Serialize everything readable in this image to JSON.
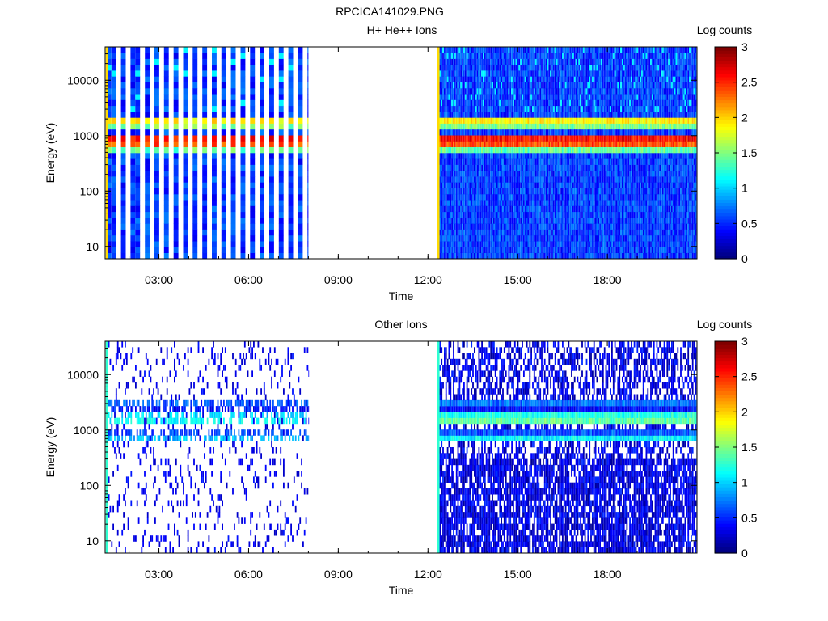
{
  "figure_title": "RPCICA141029.PNG",
  "chart_data": [
    {
      "type": "heatmap",
      "title": "H+ He++ Ions",
      "xlabel": "Time",
      "ylabel": "Energy (eV)",
      "x_ticks": [
        "03:00",
        "06:00",
        "09:00",
        "12:00",
        "15:00",
        "18:00"
      ],
      "x_range_hours": [
        1.2,
        21.0
      ],
      "y_ticks": [
        10,
        100,
        1000,
        10000
      ],
      "y_range": [
        6,
        40000
      ],
      "y_scale": "log",
      "colorbar": {
        "label": "Log counts",
        "ticks": [
          "0",
          "0.5",
          "1",
          "1.5",
          "2",
          "2.5",
          "3"
        ],
        "range": [
          0,
          3
        ]
      },
      "data_segments": [
        {
          "start": "01:15",
          "end": "08:00",
          "mode": "interleaved sweeps"
        },
        {
          "start": "12:20",
          "end": "21:00",
          "mode": "continuous"
        }
      ],
      "bands": [
        {
          "energy_eV": 1850,
          "level": 1.9
        },
        {
          "energy_eV": 1650,
          "level": 1.5
        },
        {
          "energy_eV": 850,
          "level": 2.6
        },
        {
          "energy_eV": 700,
          "level": 2.4
        },
        {
          "energy_eV": 600,
          "level": 1.4
        }
      ],
      "background_level": 0.45
    },
    {
      "type": "heatmap",
      "title": "Other Ions",
      "xlabel": "Time",
      "ylabel": "Energy (eV)",
      "x_ticks": [
        "03:00",
        "06:00",
        "09:00",
        "12:00",
        "15:00",
        "18:00"
      ],
      "x_range_hours": [
        1.2,
        21.0
      ],
      "y_ticks": [
        10,
        100,
        1000,
        10000
      ],
      "y_range": [
        6,
        40000
      ],
      "y_scale": "log",
      "colorbar": {
        "label": "Log counts",
        "ticks": [
          "0",
          "0.5",
          "1",
          "1.5",
          "2",
          "2.5",
          "3"
        ],
        "range": [
          0,
          3
        ]
      },
      "data_segments": [
        {
          "start": "01:15",
          "end": "08:00",
          "mode": "sparse"
        },
        {
          "start": "12:20",
          "end": "21:00",
          "mode": "continuous"
        }
      ],
      "bands": [
        {
          "energy_eV": 3000,
          "level": 0.7
        },
        {
          "energy_eV": 1700,
          "level": 1.2
        },
        {
          "energy_eV": 1500,
          "level": 1.4
        },
        {
          "energy_eV": 750,
          "level": 1.1
        }
      ],
      "background_level": 0.2
    }
  ]
}
